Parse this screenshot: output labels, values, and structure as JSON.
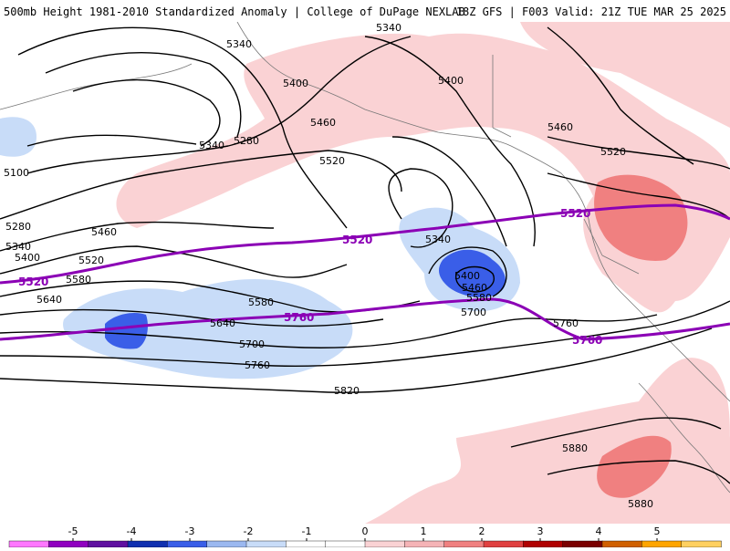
{
  "header": {
    "left": "500mb Height 1981-2010 Standardized Anomaly | College of DuPage NEXLAB",
    "right": "18Z GFS | F003 Valid: 21Z TUE MAR 25 2025"
  },
  "contour_labels": [
    "5340",
    "5340",
    "5400",
    "5400",
    "5460",
    "5460",
    "5340",
    "5280",
    "5520",
    "5520",
    "5100",
    "5280",
    "5340",
    "5400",
    "5520",
    "5580",
    "5460",
    "5640",
    "5580",
    "5640",
    "5700",
    "5760",
    "5340",
    "5400",
    "5460",
    "5580",
    "5700",
    "5760",
    "5820",
    "5880",
    "5880"
  ],
  "purple_labels": [
    "5520",
    "5520",
    "5520",
    "5760",
    "5760"
  ],
  "colorbar": {
    "ticks": [
      "-5",
      "-4",
      "-3",
      "-2",
      "-1",
      "0",
      "1",
      "2",
      "3",
      "4",
      "5"
    ],
    "colors": [
      "#ff77ff",
      "#9000c0",
      "#6010a0",
      "#1030b0",
      "#3a5ee8",
      "#9bb8f0",
      "#c8dcf8",
      "#ffffff",
      "#ffffff",
      "#fad2d4",
      "#f5b3b6",
      "#f08080",
      "#e04040",
      "#b00000",
      "#7a0000",
      "#d06000",
      "#ffa500",
      "#ffd060"
    ]
  }
}
